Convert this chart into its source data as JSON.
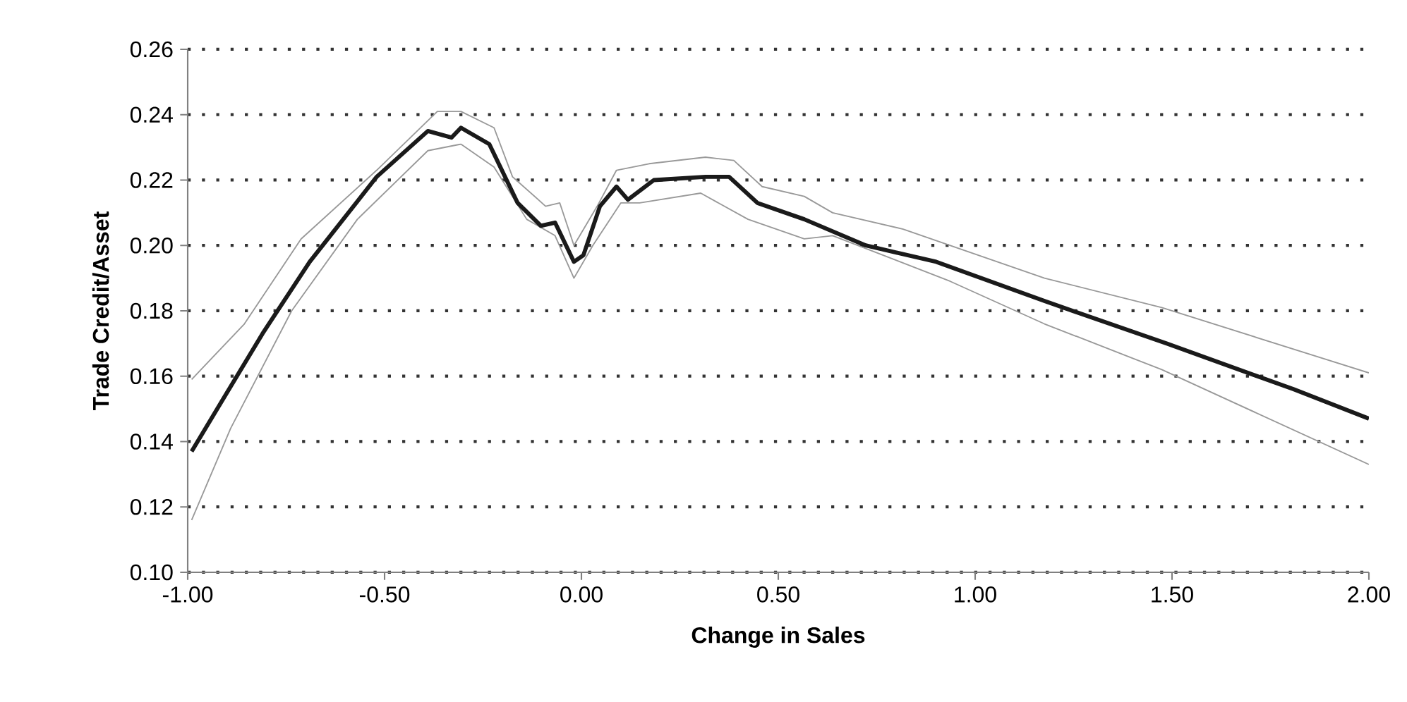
{
  "chart_data": {
    "type": "line",
    "xlabel": "Change in Sales",
    "ylabel": "Trade Credit/Asset",
    "xlim": [
      -1.0,
      2.0
    ],
    "ylim": [
      0.1,
      0.26
    ],
    "xticks": [
      {
        "value": -1.0,
        "label": "-1.00"
      },
      {
        "value": -0.5,
        "label": "-0.50"
      },
      {
        "value": 0.0,
        "label": "0.00"
      },
      {
        "value": 0.5,
        "label": "0.50"
      },
      {
        "value": 1.0,
        "label": "1.00"
      },
      {
        "value": 1.5,
        "label": "1.50"
      },
      {
        "value": 2.0,
        "label": "2.00"
      }
    ],
    "yticks": [
      {
        "value": 0.1,
        "label": "0.10"
      },
      {
        "value": 0.12,
        "label": "0.12"
      },
      {
        "value": 0.14,
        "label": "0.14"
      },
      {
        "value": 0.16,
        "label": "0.16"
      },
      {
        "value": 0.18,
        "label": "0.18"
      },
      {
        "value": 0.2,
        "label": "0.20"
      },
      {
        "value": 0.22,
        "label": "0.22"
      },
      {
        "value": 0.24,
        "label": "0.24"
      },
      {
        "value": 0.26,
        "label": "0.26"
      }
    ],
    "grid": "y",
    "marker": "none",
    "series": [
      {
        "color": "#999999",
        "x": [
          -0.99,
          -0.856,
          -0.712,
          -0.52,
          -0.366,
          -0.306,
          -0.222,
          -0.175,
          -0.091,
          -0.055,
          -0.019,
          0.04,
          0.089,
          0.172,
          0.315,
          0.387,
          0.459,
          0.566,
          0.638,
          0.817,
          1.176,
          1.474,
          2.0
        ],
        "values": [
          0.159,
          0.176,
          0.202,
          0.223,
          0.241,
          0.241,
          0.236,
          0.221,
          0.212,
          0.213,
          0.2,
          0.212,
          0.223,
          0.225,
          0.227,
          0.226,
          0.218,
          0.215,
          0.21,
          0.205,
          0.19,
          0.181,
          0.161
        ]
      },
      {
        "color": "#999999",
        "x": [
          -0.99,
          -0.891,
          -0.736,
          -0.569,
          -0.39,
          -0.306,
          -0.222,
          -0.139,
          -0.067,
          -0.019,
          0.029,
          0.1,
          0.148,
          0.303,
          0.423,
          0.566,
          0.638,
          0.937,
          1.176,
          1.474,
          2.0
        ],
        "values": [
          0.116,
          0.144,
          0.18,
          0.208,
          0.229,
          0.231,
          0.224,
          0.208,
          0.203,
          0.19,
          0.2,
          0.213,
          0.213,
          0.216,
          0.208,
          0.202,
          0.203,
          0.189,
          0.176,
          0.162,
          0.133
        ]
      },
      {
        "color": "#1a1a1a",
        "x": [
          -0.99,
          -0.915,
          -0.81,
          -0.69,
          -0.52,
          -0.39,
          -0.33,
          -0.306,
          -0.234,
          -0.162,
          -0.103,
          -0.067,
          -0.019,
          0.005,
          0.047,
          0.089,
          0.118,
          0.184,
          0.315,
          0.375,
          0.447,
          0.566,
          0.722,
          0.901,
          1.176,
          1.486,
          1.809,
          2.0
        ],
        "values": [
          0.137,
          0.152,
          0.173,
          0.195,
          0.221,
          0.235,
          0.233,
          0.236,
          0.231,
          0.213,
          0.206,
          0.207,
          0.195,
          0.197,
          0.212,
          0.218,
          0.214,
          0.22,
          0.221,
          0.221,
          0.213,
          0.208,
          0.2,
          0.195,
          0.183,
          0.17,
          0.156,
          0.147
        ]
      }
    ]
  }
}
